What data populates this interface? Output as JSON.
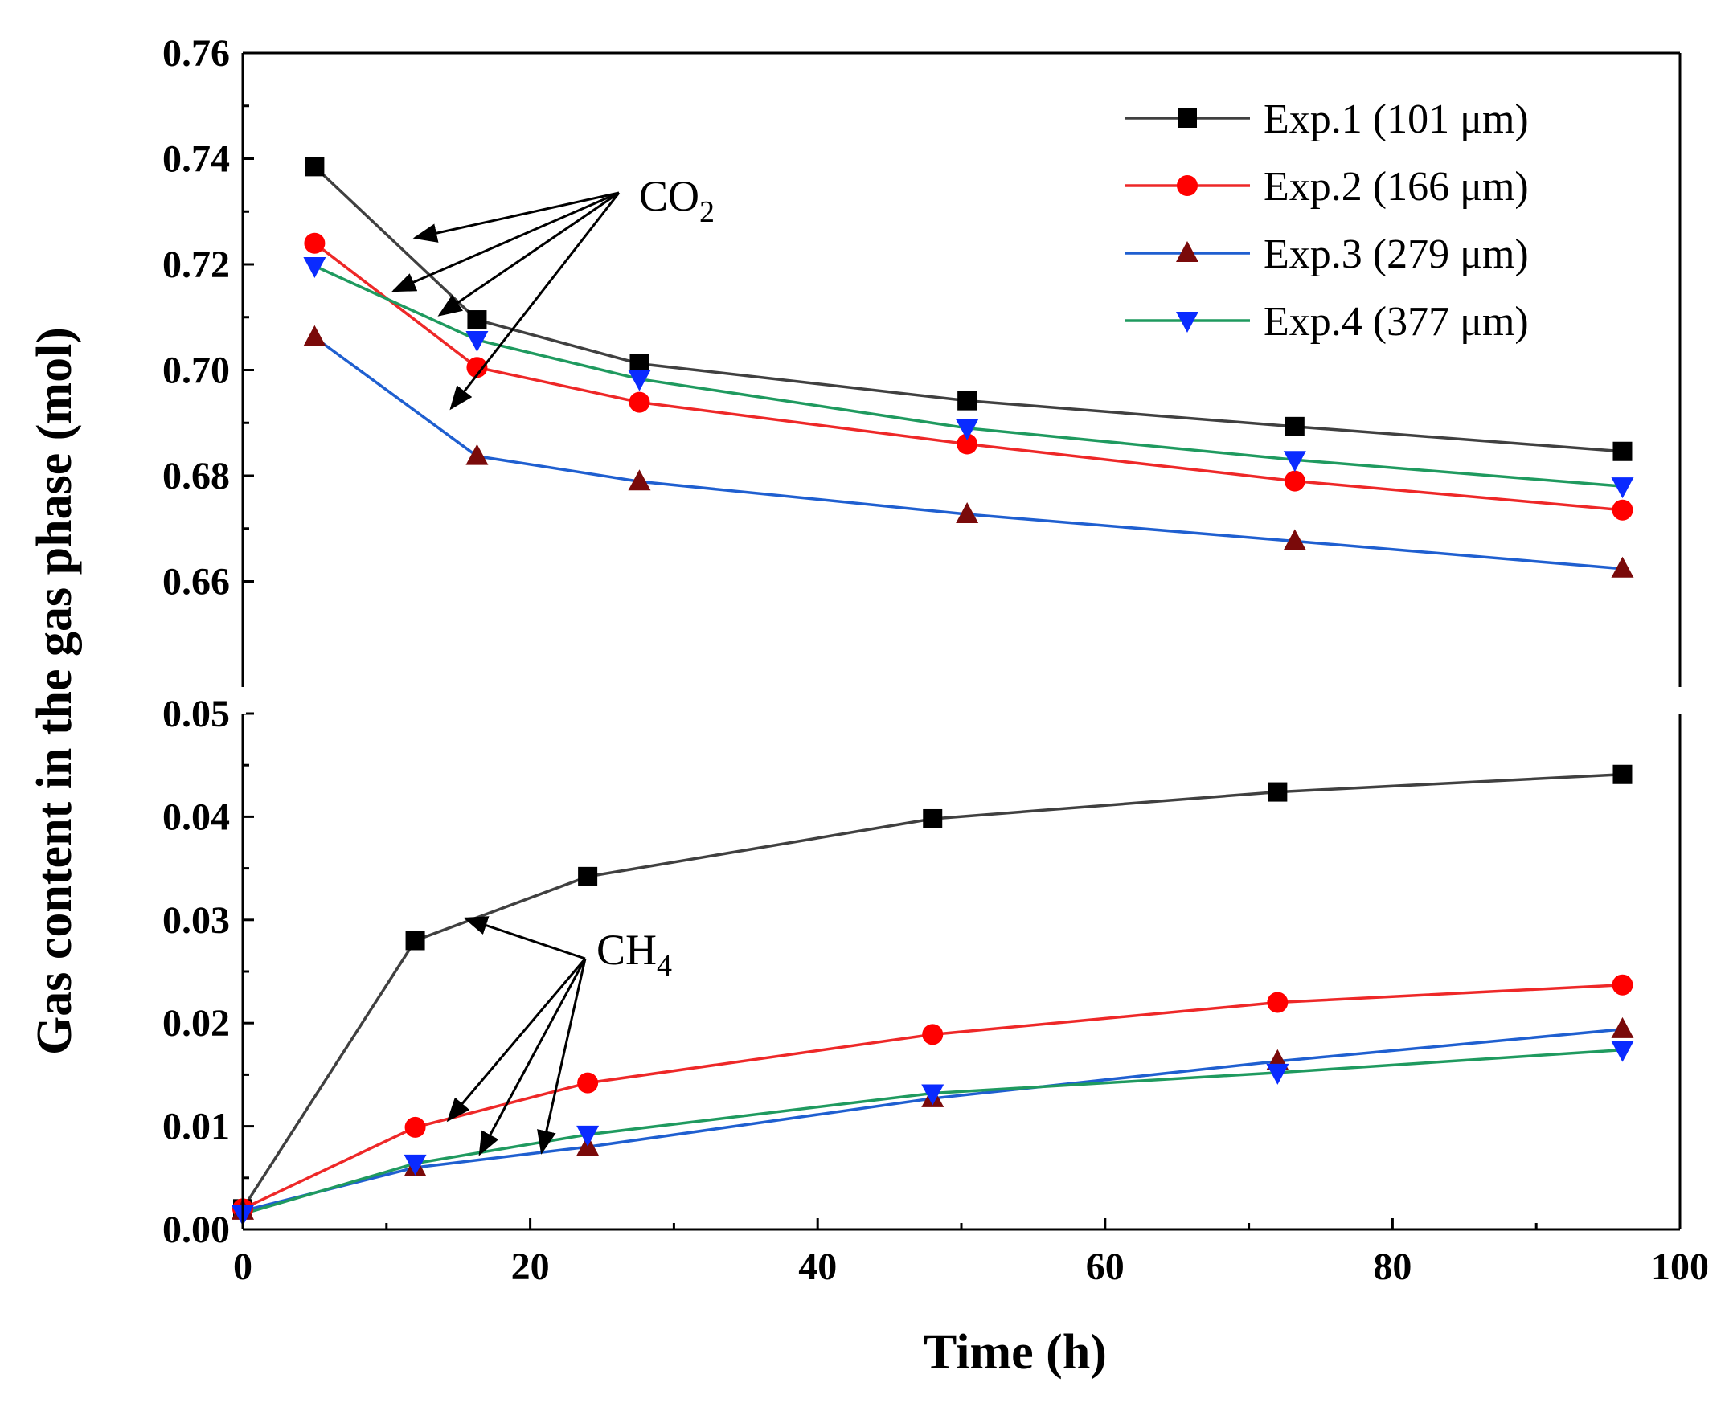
{
  "chart_data": {
    "type": "line",
    "xlabel": "Time (h)",
    "ylabel": "Gas content in the gas phase (mol)",
    "xlim": [
      0,
      100
    ],
    "x_ticks": [
      "0",
      "20",
      "40",
      "60",
      "80",
      "100"
    ],
    "grid": false,
    "broken_y_axis": true,
    "legend_position": "top-right",
    "upper_panel": {
      "ylim": [
        0.64,
        0.76
      ],
      "y_ticks": [
        "0.66",
        "0.68",
        "0.70",
        "0.72",
        "0.74",
        "0.76"
      ],
      "annotation": {
        "text": "CO",
        "subscript": "2"
      },
      "series": [
        {
          "name": "Exp.1 (101 μm)",
          "color": "#404040",
          "marker": "square",
          "x": [
            5,
            16.3,
            27.6,
            50.4,
            73.2,
            96
          ],
          "y": [
            0.7385,
            0.7095,
            0.7012,
            0.6942,
            0.6893,
            0.6846
          ]
        },
        {
          "name": "Exp.2 (166 μm)",
          "color": "#ee2828",
          "marker": "circle",
          "x": [
            5,
            16.3,
            27.6,
            50.4,
            73.2,
            96
          ],
          "y": [
            0.724,
            0.7005,
            0.6939,
            0.686,
            0.679,
            0.6735
          ]
        },
        {
          "name": "Exp.3 (279 μm)",
          "color": "#1f5fd0",
          "marker": "triangle-up",
          "x": [
            5,
            16.3,
            27.6,
            50.4,
            73.2,
            96
          ],
          "y": [
            0.7062,
            0.6837,
            0.6789,
            0.6727,
            0.6676,
            0.6624
          ]
        },
        {
          "name": "Exp.4 (377 μm)",
          "color": "#1f9a5f",
          "marker": "triangle-down",
          "x": [
            5,
            16.3,
            27.6,
            50.4,
            73.2,
            96
          ],
          "y": [
            0.7197,
            0.7057,
            0.6983,
            0.689,
            0.683,
            0.678
          ]
        }
      ]
    },
    "lower_panel": {
      "ylim": [
        0.0,
        0.05
      ],
      "y_ticks": [
        "0.00",
        "0.01",
        "0.02",
        "0.03",
        "0.04",
        "0.05"
      ],
      "annotation": {
        "text": "CH",
        "subscript": "4"
      },
      "series": [
        {
          "name": "Exp.1 (101 μm)",
          "color": "#404040",
          "marker": "square",
          "x": [
            0,
            12,
            24,
            48,
            72,
            96
          ],
          "y": [
            0.002,
            0.028,
            0.0342,
            0.0398,
            0.0424,
            0.0441
          ]
        },
        {
          "name": "Exp.2 (166 μm)",
          "color": "#ee2828",
          "marker": "circle",
          "x": [
            0,
            12,
            24,
            48,
            72,
            96
          ],
          "y": [
            0.002,
            0.0099,
            0.0142,
            0.0189,
            0.022,
            0.0237
          ]
        },
        {
          "name": "Exp.3 (279 μm)",
          "color": "#1f5fd0",
          "marker": "triangle-up",
          "x": [
            0,
            12,
            24,
            48,
            72,
            96
          ],
          "y": [
            0.0018,
            0.006,
            0.008,
            0.0127,
            0.0163,
            0.0194
          ]
        },
        {
          "name": "Exp.4 (377 μm)",
          "color": "#1f9a5f",
          "marker": "triangle-down",
          "x": [
            0,
            12,
            24,
            48,
            72,
            96
          ],
          "y": [
            0.0015,
            0.0064,
            0.0092,
            0.0132,
            0.0152,
            0.0174
          ]
        }
      ]
    },
    "marker_colors": {
      "square": "#000000",
      "circle": "#ff0000",
      "triangle-up": "#7a0a0a",
      "triangle-down": "#0a2bff"
    }
  }
}
